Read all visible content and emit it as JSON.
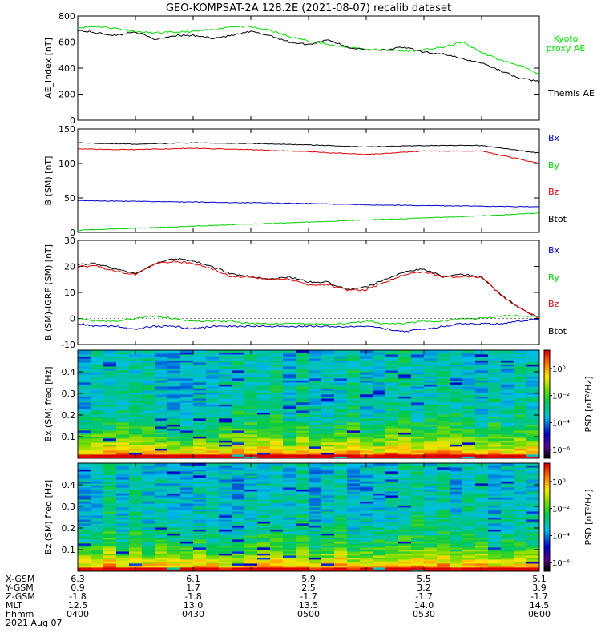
{
  "title": "GEO-KOMPSAT-2A 128.2E (2021-08-07) recalib dataset",
  "chart_data": [
    {
      "type": "line",
      "ylabel": "AE_index [nT]",
      "ylim": [
        0,
        800
      ],
      "yticks": [
        0,
        200,
        400,
        600,
        800
      ],
      "x": [
        "04:00",
        "04:05",
        "04:10",
        "04:15",
        "04:20",
        "04:25",
        "04:30",
        "04:35",
        "04:40",
        "04:45",
        "04:50",
        "04:55",
        "05:00",
        "05:05",
        "05:10",
        "05:15",
        "05:20",
        "05:25",
        "05:30",
        "05:35",
        "05:40",
        "05:45",
        "05:50",
        "05:55",
        "06:00"
      ],
      "series": [
        {
          "name": "Kyoto proxy AE",
          "color": "#00e000",
          "values": [
            710,
            720,
            705,
            680,
            670,
            675,
            680,
            695,
            720,
            715,
            690,
            640,
            610,
            580,
            560,
            545,
            540,
            530,
            540,
            560,
            600,
            520,
            460,
            420,
            350
          ]
        },
        {
          "name": "Themis AE",
          "color": "#000000",
          "values": [
            690,
            670,
            650,
            680,
            620,
            650,
            650,
            630,
            650,
            680,
            650,
            600,
            580,
            620,
            560,
            540,
            540,
            560,
            520,
            510,
            470,
            440,
            380,
            320,
            300
          ]
        }
      ]
    },
    {
      "type": "line",
      "ylabel": "B (SM) [nT]",
      "ylim": [
        0,
        150
      ],
      "yticks": [
        0,
        50,
        100,
        150
      ],
      "x": [
        "04:00",
        "04:15",
        "04:30",
        "04:45",
        "05:00",
        "05:15",
        "05:30",
        "05:45",
        "06:00"
      ],
      "series": [
        {
          "name": "Btot",
          "color": "#000000",
          "values": [
            130,
            128,
            130,
            129,
            127,
            124,
            126,
            126,
            115
          ]
        },
        {
          "name": "Bz",
          "color": "#e00000",
          "values": [
            121,
            120,
            122,
            120,
            117,
            113,
            118,
            118,
            100
          ]
        },
        {
          "name": "Bx",
          "color": "#0000cc",
          "values": [
            46,
            45,
            44,
            43,
            42,
            40,
            39,
            38,
            37
          ]
        },
        {
          "name": "By",
          "color": "#00d000",
          "values": [
            3,
            6,
            9,
            12,
            15,
            18,
            21,
            24,
            28
          ]
        }
      ]
    },
    {
      "type": "line",
      "ylabel": "B (SM)-IGRF (SM) [nT]",
      "ylim": [
        -10,
        30
      ],
      "yticks": [
        -10,
        0,
        10,
        20,
        30
      ],
      "x": [
        "04:00",
        "04:05",
        "04:10",
        "04:15",
        "04:20",
        "04:25",
        "04:30",
        "04:35",
        "04:40",
        "04:45",
        "04:50",
        "04:55",
        "05:00",
        "05:05",
        "05:10",
        "05:15",
        "05:20",
        "05:25",
        "05:30",
        "05:35",
        "05:40",
        "05:45",
        "05:50",
        "05:55",
        "06:00"
      ],
      "series": [
        {
          "name": "Btot",
          "color": "#000000",
          "values": [
            21,
            21,
            19,
            17,
            21,
            23,
            22,
            20,
            17,
            16,
            15,
            16,
            14,
            14,
            11,
            12,
            15,
            18,
            19,
            16,
            17,
            16,
            9,
            4,
            0
          ]
        },
        {
          "name": "Bz",
          "color": "#e00000",
          "values": [
            20,
            20,
            18,
            17,
            21,
            22,
            21,
            19,
            16,
            16,
            15,
            15,
            13,
            13,
            11,
            11,
            14,
            17,
            18,
            16,
            16,
            16,
            9,
            4,
            0
          ]
        },
        {
          "name": "Bx",
          "color": "#0000cc",
          "values": [
            -2,
            -3,
            -3,
            -4,
            -3,
            -3,
            -4,
            -3,
            -3,
            -3,
            -3,
            -3,
            -3,
            -3,
            -3,
            -3,
            -4,
            -5,
            -4,
            -3,
            -2,
            -2,
            -2,
            -1,
            0
          ]
        },
        {
          "name": "By",
          "color": "#00d000",
          "values": [
            0,
            -1,
            -1,
            0,
            1,
            0,
            -1,
            -1,
            -1,
            -2,
            -2,
            -2,
            -2,
            -2,
            -2,
            -1,
            -2,
            -2,
            -1,
            -1,
            0,
            0,
            1,
            1,
            1
          ]
        }
      ]
    },
    {
      "type": "heatmap",
      "ylabel": "Bx (SM) freq [Hz]",
      "ylim": [
        0,
        0.5
      ],
      "yticks": [
        "0.1",
        "0.2",
        "0.3",
        "0.4"
      ],
      "colorbar": {
        "label": "PSD [nT²/Hz]",
        "ticks": [
          "10⁰",
          "10⁻²",
          "10⁻⁴",
          "10⁻⁶"
        ]
      }
    },
    {
      "type": "heatmap",
      "ylabel": "Bz (SM) freq [Hz]",
      "ylim": [
        0,
        0.5
      ],
      "yticks": [
        "0.1",
        "0.2",
        "0.3",
        "0.4"
      ],
      "colorbar": {
        "label": "PSD [nT²/Hz]",
        "ticks": [
          "10⁰",
          "10⁻²",
          "10⁻⁴",
          "10⁻⁶"
        ]
      }
    }
  ],
  "panel1_legend": [
    {
      "text": "Kyoto",
      "color": "#00e000"
    },
    {
      "text": "proxy AE",
      "color": "#00e000"
    },
    {
      "text": "Themis AE",
      "color": "#000000"
    }
  ],
  "component_legend": [
    {
      "text": "Bx",
      "color": "#0000cc"
    },
    {
      "text": "By",
      "color": "#00d000"
    },
    {
      "text": "Bz",
      "color": "#e00000"
    },
    {
      "text": "Btot",
      "color": "#000000"
    }
  ],
  "orbit_table": {
    "labels": [
      "X-GSM",
      "Y-GSM",
      "Z-GSM",
      "MLT",
      "hhmm"
    ],
    "columns": [
      [
        "6.3",
        "0.9",
        "-1.8",
        "12.5",
        "0400"
      ],
      [
        "6.1",
        "1.7",
        "-1.8",
        "13.0",
        "0430"
      ],
      [
        "5.9",
        "2.5",
        "-1.7",
        "13.5",
        "0500"
      ],
      [
        "5.5",
        "3.2",
        "-1.7",
        "14.0",
        "0530"
      ],
      [
        "5.1",
        "3.9",
        "-1.7",
        "14.5",
        "0600"
      ]
    ],
    "date": "2021 Aug 07"
  }
}
